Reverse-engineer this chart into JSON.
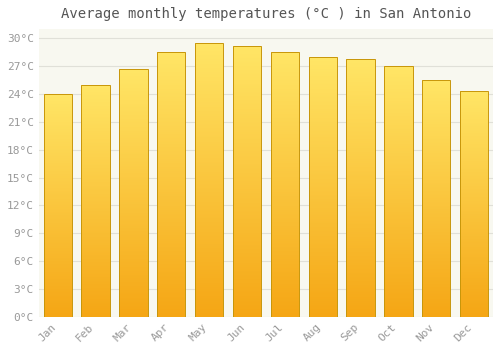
{
  "title": "Average monthly temperatures (°C ) in San Antonio",
  "months": [
    "Jan",
    "Feb",
    "Mar",
    "Apr",
    "May",
    "Jun",
    "Jul",
    "Aug",
    "Sep",
    "Oct",
    "Nov",
    "Dec"
  ],
  "values": [
    24.0,
    25.0,
    26.7,
    28.5,
    29.5,
    29.2,
    28.5,
    28.0,
    27.8,
    27.0,
    25.5,
    24.3
  ],
  "bar_color_bottom": "#F5A800",
  "bar_color_top": "#FFD966",
  "bar_edge_color": "#C8960A",
  "background_color": "#FFFFFF",
  "plot_bg_color": "#F8F8F0",
  "grid_color": "#E0E0D8",
  "ylim": [
    0,
    31
  ],
  "yticks": [
    0,
    3,
    6,
    9,
    12,
    15,
    18,
    21,
    24,
    27,
    30
  ],
  "ylabel_format": "°C",
  "title_fontsize": 10,
  "tick_fontsize": 8,
  "tick_color": "#999999",
  "title_color": "#555555",
  "font_family": "monospace"
}
